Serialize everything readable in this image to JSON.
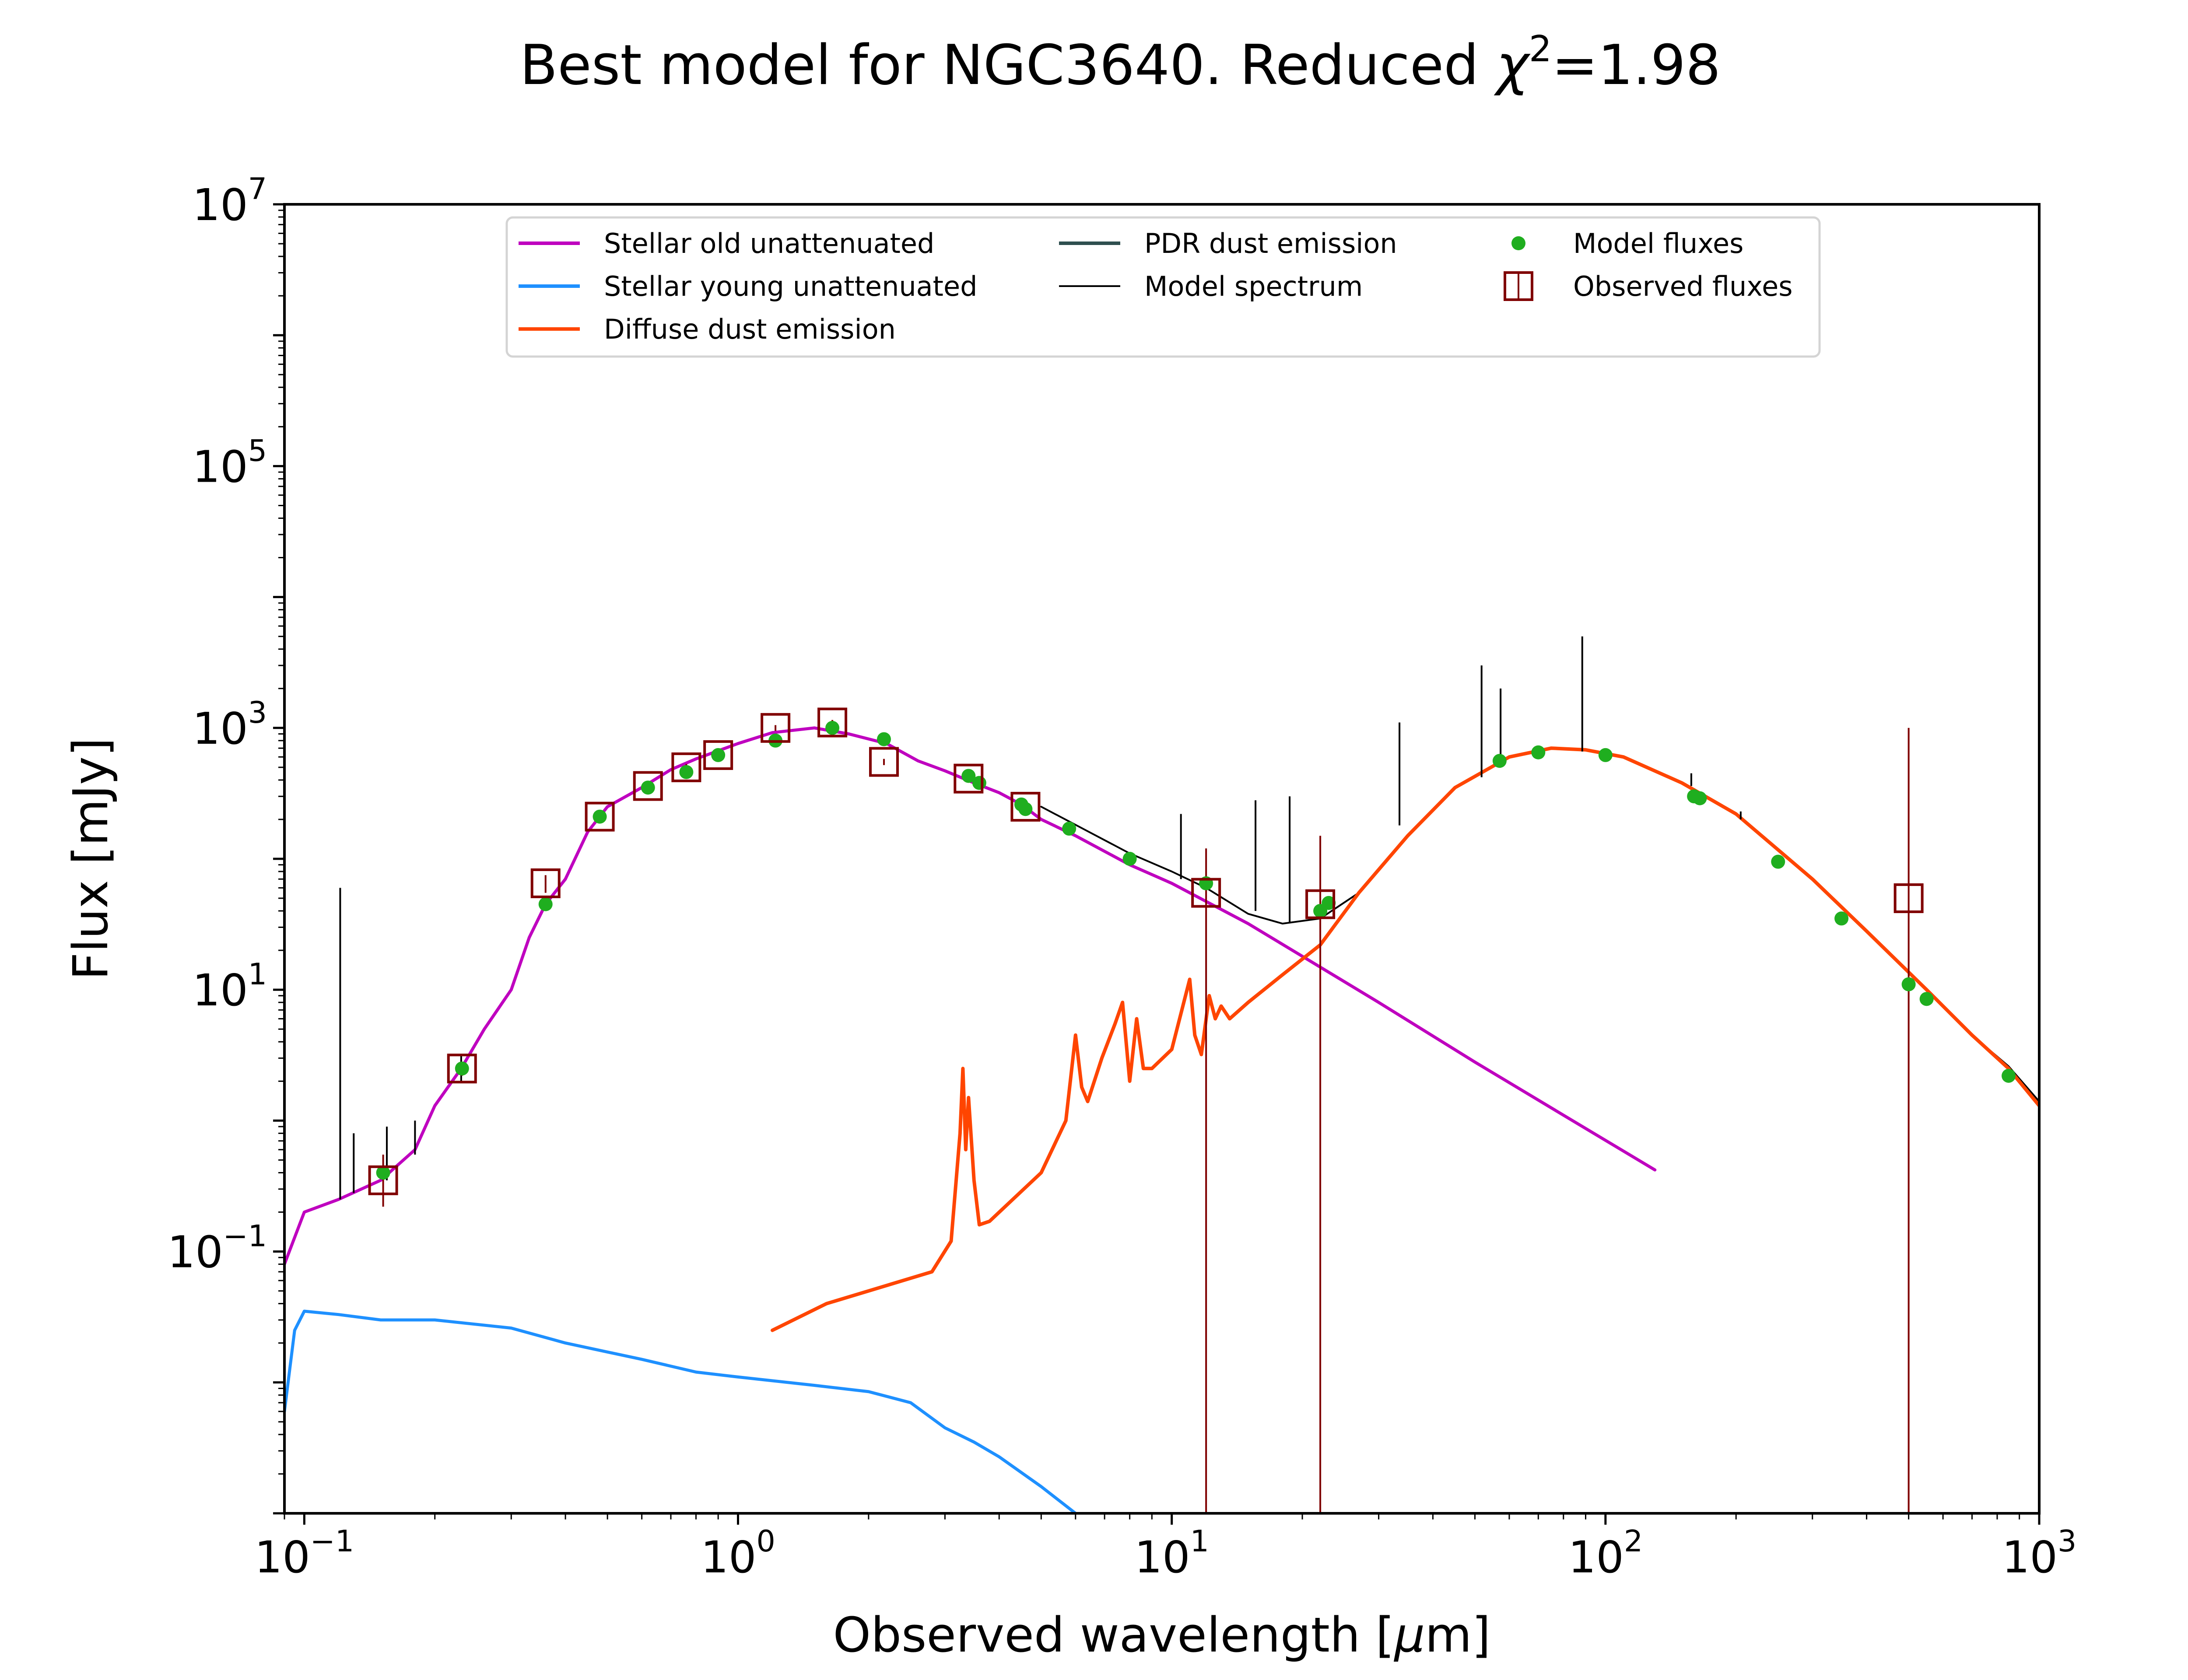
{
  "chart_data": {
    "type": "line",
    "title_prefix": "Best model for NGC3640. Reduced ",
    "title_symbol": "χ",
    "title_exponent": "2",
    "title_suffix": "=1.98",
    "xlabel_prefix": "Observed wavelength [",
    "xlabel_unit_symbol": "μ",
    "xlabel_suffix": "m]",
    "ylabel": "Flux [mJy]",
    "xscale": "log",
    "yscale": "log",
    "xlim": [
      0.09,
      1000
    ],
    "ylim": [
      0.001,
      10000000
    ],
    "x_ticks": [
      {
        "value": 0.1,
        "base": "10",
        "exp": "−1"
      },
      {
        "value": 1,
        "base": "10",
        "exp": "0"
      },
      {
        "value": 10,
        "base": "10",
        "exp": "1"
      },
      {
        "value": 100,
        "base": "10",
        "exp": "2"
      },
      {
        "value": 1000,
        "base": "10",
        "exp": "3"
      }
    ],
    "y_ticks": [
      {
        "value": 0.1,
        "base": "10",
        "exp": "−1"
      },
      {
        "value": 10,
        "base": "10",
        "exp": "1"
      },
      {
        "value": 1000,
        "base": "10",
        "exp": "3"
      },
      {
        "value": 100000,
        "base": "10",
        "exp": "5"
      },
      {
        "value": 10000000,
        "base": "10",
        "exp": "7"
      }
    ],
    "grid": false,
    "legend_position": "top-center",
    "colors": {
      "stellar_old": "#bf00bf",
      "stellar_young": "#1e90ff",
      "diffuse_dust": "#ff4500",
      "pdr_dust": "#2f4f4f",
      "model_spectrum": "#000000",
      "model_fluxes": "#1fae1f",
      "observed_fluxes": "#800000"
    },
    "legend": [
      {
        "key": "stellar_old",
        "label": "Stellar old unattenuated",
        "kind": "line"
      },
      {
        "key": "stellar_young",
        "label": "Stellar young unattenuated",
        "kind": "line"
      },
      {
        "key": "diffuse_dust",
        "label": "Diffuse dust emission",
        "kind": "line"
      },
      {
        "key": "pdr_dust",
        "label": "PDR dust emission",
        "kind": "line"
      },
      {
        "key": "model_spectrum",
        "label": "Model spectrum",
        "kind": "thinline"
      },
      {
        "key": "model_fluxes",
        "label": "Model fluxes",
        "kind": "dot"
      },
      {
        "key": "observed_fluxes",
        "label": "Observed fluxes",
        "kind": "square"
      }
    ],
    "series": [
      {
        "key": "stellar_old",
        "x": [
          0.09,
          0.1,
          0.12,
          0.15,
          0.18,
          0.2,
          0.23,
          0.26,
          0.3,
          0.33,
          0.36,
          0.4,
          0.45,
          0.5,
          0.6,
          0.7,
          0.8,
          1.0,
          1.2,
          1.5,
          1.8,
          2.2,
          2.6,
          3.0,
          3.5,
          4.0,
          4.5,
          5.0,
          6.0,
          8.0,
          10,
          15,
          20,
          30,
          50,
          80,
          130
        ],
        "y": [
          0.08,
          0.2,
          0.25,
          0.35,
          0.6,
          1.3,
          2.5,
          5,
          10,
          25,
          45,
          70,
          160,
          250,
          350,
          480,
          580,
          760,
          920,
          1000,
          900,
          760,
          560,
          470,
          380,
          320,
          260,
          200,
          150,
          90,
          65,
          32,
          18,
          8,
          2.8,
          1.1,
          0.42
        ]
      },
      {
        "key": "stellar_young",
        "x": [
          0.09,
          0.095,
          0.1,
          0.12,
          0.15,
          0.2,
          0.3,
          0.4,
          0.6,
          0.8,
          1.0,
          1.5,
          2.0,
          2.5,
          3.0,
          3.5,
          4.0,
          5.0,
          6.0
        ],
        "y": [
          0.006,
          0.025,
          0.035,
          0.033,
          0.03,
          0.03,
          0.026,
          0.02,
          0.015,
          0.012,
          0.011,
          0.0095,
          0.0085,
          0.007,
          0.0045,
          0.0035,
          0.0027,
          0.0016,
          0.001
        ]
      },
      {
        "key": "diffuse_dust",
        "x": [
          1.2,
          1.6,
          2.2,
          2.8,
          3.1,
          3.25,
          3.3,
          3.35,
          3.4,
          3.5,
          3.6,
          3.8,
          4.3,
          5.0,
          5.7,
          6.0,
          6.2,
          6.4,
          6.9,
          7.4,
          7.7,
          8.0,
          8.3,
          8.6,
          9.0,
          10.0,
          11.0,
          11.3,
          11.7,
          12.2,
          12.6,
          13.0,
          13.6,
          15,
          18,
          22,
          27,
          35,
          45,
          60,
          75,
          90,
          110,
          150,
          200,
          300,
          400,
          550,
          700,
          850,
          1000
        ],
        "y": [
          0.025,
          0.04,
          0.055,
          0.07,
          0.12,
          0.8,
          2.5,
          0.6,
          1.5,
          0.35,
          0.16,
          0.17,
          0.25,
          0.4,
          1.0,
          4.5,
          1.8,
          1.4,
          3,
          5.5,
          8,
          2,
          6,
          2.5,
          2.5,
          3.5,
          12,
          4.5,
          3.2,
          9,
          6,
          7.5,
          6,
          8,
          13,
          22,
          55,
          150,
          350,
          600,
          700,
          680,
          600,
          380,
          220,
          70,
          28,
          10,
          4.5,
          2.5,
          1.3
        ]
      },
      {
        "key": "model_spectrum",
        "x": [
          5.0,
          8.0,
          10,
          12,
          15,
          18,
          22,
          27,
          35,
          45,
          60,
          75,
          90,
          110,
          150,
          200,
          300,
          400,
          550,
          700,
          850,
          1000
        ],
        "y": [
          250,
          110,
          80,
          60,
          38,
          32,
          35,
          55,
          150,
          350,
          600,
          700,
          680,
          600,
          380,
          220,
          70,
          28,
          10,
          4.5,
          2.6,
          1.4
        ]
      }
    ],
    "spectral_lines": [
      {
        "x": 0.121,
        "y_low": 0.25,
        "y_high": 60
      },
      {
        "x": 0.13,
        "y_low": 0.28,
        "y_high": 0.8
      },
      {
        "x": 0.155,
        "y_low": 0.35,
        "y_high": 0.9
      },
      {
        "x": 0.18,
        "y_low": 0.55,
        "y_high": 1.0
      },
      {
        "x": 0.23,
        "y_low": 2.0,
        "y_high": 3.2
      },
      {
        "x": 10.5,
        "y_low": 70,
        "y_high": 220
      },
      {
        "x": 15.6,
        "y_low": 40,
        "y_high": 280
      },
      {
        "x": 18.7,
        "y_low": 33,
        "y_high": 300
      },
      {
        "x": 33.5,
        "y_low": 180,
        "y_high": 1100
      },
      {
        "x": 51.8,
        "y_low": 420,
        "y_high": 3000
      },
      {
        "x": 57.3,
        "y_low": 500,
        "y_high": 2000
      },
      {
        "x": 88.4,
        "y_low": 660,
        "y_high": 5000
      },
      {
        "x": 157.7,
        "y_low": 360,
        "y_high": 450
      },
      {
        "x": 205,
        "y_low": 200,
        "y_high": 230
      }
    ],
    "model_fluxes": {
      "x": [
        0.152,
        0.231,
        0.36,
        0.48,
        0.62,
        0.76,
        0.9,
        1.22,
        1.65,
        2.17,
        3.4,
        3.6,
        4.5,
        4.6,
        5.8,
        8.0,
        12,
        22,
        23,
        57,
        70,
        100,
        160,
        165,
        250,
        350,
        500,
        550,
        850
      ],
      "y": [
        0.4,
        2.5,
        45,
        210,
        350,
        460,
        620,
        800,
        1000,
        820,
        430,
        380,
        260,
        240,
        170,
        100,
        65,
        40,
        46,
        560,
        650,
        620,
        300,
        290,
        95,
        35,
        11,
        8.5,
        2.2
      ]
    },
    "observed_fluxes": {
      "x": [
        0.152,
        0.231,
        0.36,
        0.48,
        0.62,
        0.76,
        0.9,
        1.22,
        1.65,
        2.17,
        3.4,
        4.6,
        12,
        22,
        500
      ],
      "y": [
        0.35,
        2.5,
        65,
        210,
        360,
        500,
        620,
        1000,
        1100,
        550,
        410,
        250,
        55,
        45,
        50
      ],
      "err_low": [
        0.22,
        2.2,
        55,
        190,
        330,
        470,
        600,
        950,
        1050,
        520,
        390,
        240,
        0.001,
        0.001,
        0.001
      ],
      "err_high": [
        0.55,
        2.8,
        75,
        230,
        390,
        530,
        640,
        1050,
        1150,
        580,
        430,
        260,
        120,
        150,
        1000
      ]
    }
  }
}
